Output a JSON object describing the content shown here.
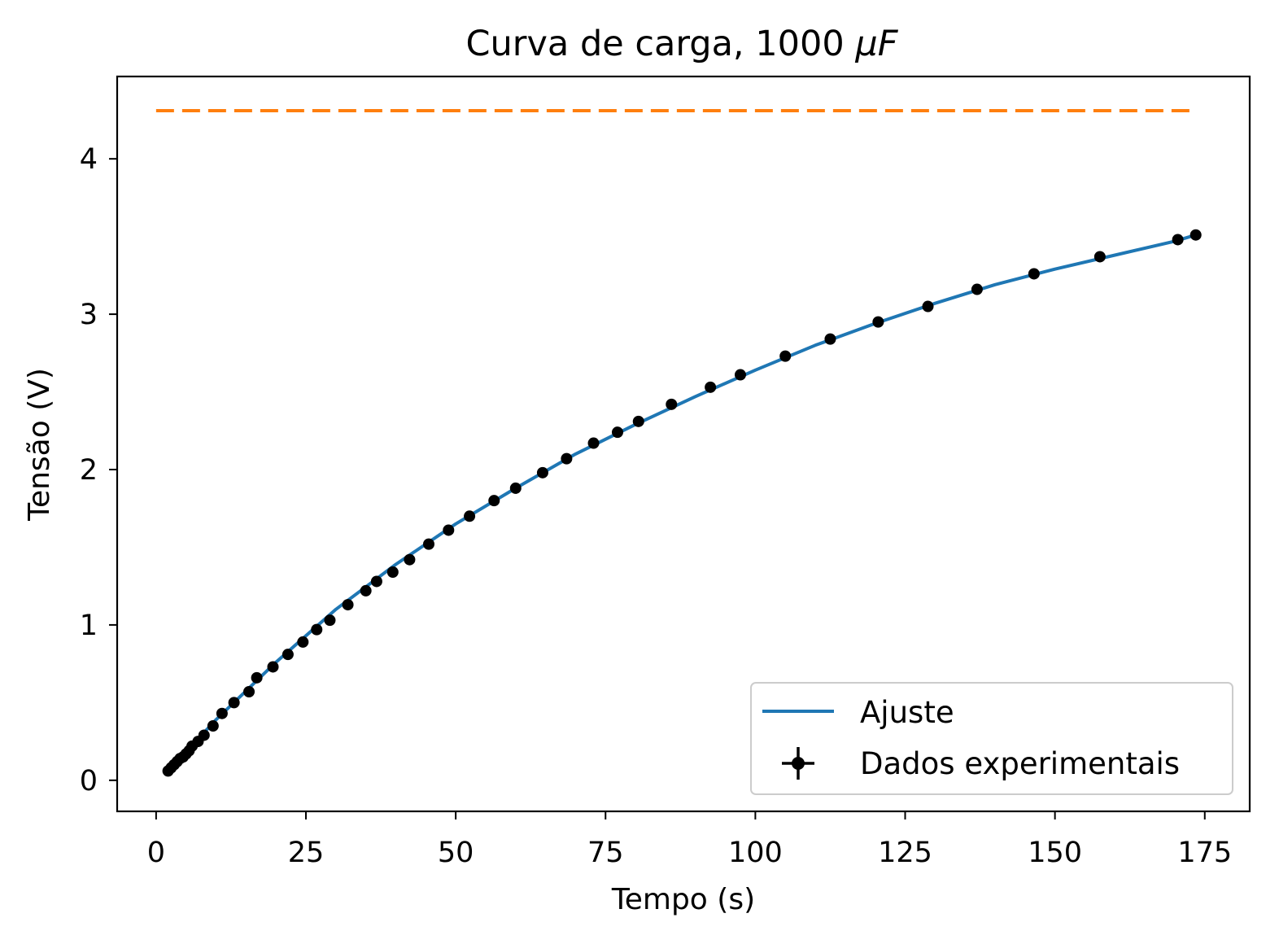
{
  "chart_data": {
    "type": "line",
    "title": "Curva de carga, 1000",
    "title_math": "μF",
    "xlabel": "Tempo (s)",
    "ylabel": "Tensão (V)",
    "xlim": [
      -6.5,
      182.5
    ],
    "ylim": [
      -0.2,
      4.53
    ],
    "xticks": [
      0,
      25,
      50,
      75,
      100,
      125,
      150,
      175
    ],
    "yticks": [
      0,
      1,
      2,
      3,
      4
    ],
    "grid": false,
    "legend_position": "lower-right",
    "colors": {
      "fit": "#1f77b4",
      "data": "#000000",
      "asymptote": "#ff7f0e"
    },
    "series": [
      {
        "name": "Ajuste",
        "kind": "line",
        "x": [
          2.0,
          10,
          20,
          30,
          40,
          50,
          60,
          70,
          80,
          90,
          100,
          110,
          120,
          130,
          140,
          150,
          160,
          170,
          173.5
        ],
        "y": [
          0.06,
          0.39,
          0.76,
          1.1,
          1.39,
          1.65,
          1.88,
          2.1,
          2.29,
          2.47,
          2.64,
          2.8,
          2.94,
          3.07,
          3.19,
          3.29,
          3.38,
          3.47,
          3.51
        ]
      },
      {
        "name": "Dados experimentais",
        "kind": "errorbar",
        "x": [
          2.0,
          2.5,
          3.0,
          3.5,
          4.0,
          4.5,
          5.0,
          5.5,
          6.0,
          7.0,
          8.0,
          9.5,
          11.0,
          13.0,
          15.5,
          16.8,
          19.5,
          22.0,
          24.5,
          26.8,
          29.0,
          32.0,
          35.0,
          36.8,
          39.5,
          42.3,
          45.5,
          48.8,
          52.3,
          56.4,
          60.0,
          64.5,
          68.5,
          73.0,
          77.0,
          80.5,
          86.0,
          92.5,
          97.5,
          105.0,
          112.5,
          120.5,
          128.8,
          137.0,
          146.5,
          157.5,
          170.5,
          173.5
        ],
        "y": [
          0.06,
          0.08,
          0.1,
          0.12,
          0.14,
          0.15,
          0.17,
          0.19,
          0.22,
          0.25,
          0.29,
          0.35,
          0.43,
          0.5,
          0.57,
          0.66,
          0.73,
          0.81,
          0.89,
          0.97,
          1.03,
          1.13,
          1.22,
          1.28,
          1.34,
          1.42,
          1.52,
          1.61,
          1.7,
          1.8,
          1.88,
          1.98,
          2.07,
          2.17,
          2.24,
          2.31,
          2.42,
          2.53,
          2.61,
          2.73,
          2.84,
          2.95,
          3.05,
          3.16,
          3.26,
          3.37,
          3.48,
          3.51
        ],
        "yerr": 0.035,
        "xerr": 0.2
      },
      {
        "kind": "hline",
        "style": "dashed",
        "x": [
          0,
          173.5
        ],
        "y": 4.31
      }
    ]
  }
}
